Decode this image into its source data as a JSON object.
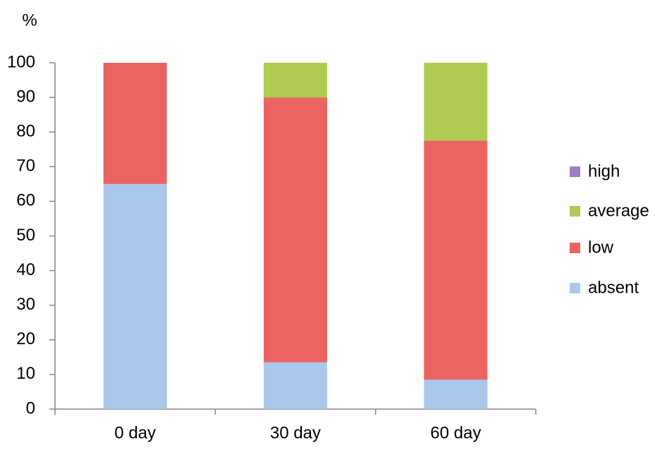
{
  "chart_data": {
    "type": "stacked-bar",
    "y_label": "%",
    "categories": [
      "0 day",
      "30 day",
      "60 day"
    ],
    "series": [
      {
        "name": "absent",
        "color": "#a9c8eb",
        "values": [
          65,
          13.5,
          8.5
        ]
      },
      {
        "name": "low",
        "color": "#eb6461",
        "values": [
          35,
          76.5,
          69
        ]
      },
      {
        "name": "average",
        "color": "#b0cb4f",
        "values": [
          0,
          10,
          22.5
        ]
      },
      {
        "name": "high",
        "color": "#9e7fc0",
        "values": [
          0,
          0,
          0
        ]
      }
    ],
    "ylim": [
      0,
      100
    ],
    "yticks": [
      0,
      10,
      20,
      30,
      40,
      50,
      60,
      70,
      80,
      90,
      100
    ],
    "legend": "right"
  }
}
